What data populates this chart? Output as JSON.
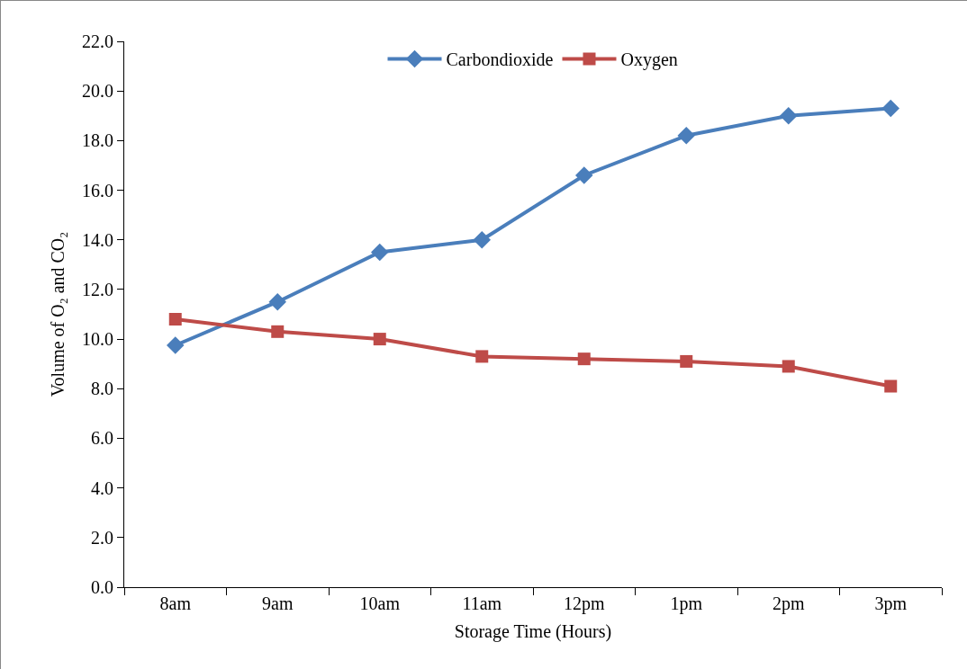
{
  "chart_data": {
    "type": "line",
    "xlabel": "Storage Time (Hours)",
    "ylabel": "Volume of O₂ and CO₂",
    "categories": [
      "8am",
      "9am",
      "10am",
      "11am",
      "12pm",
      "1pm",
      "2pm",
      "3pm"
    ],
    "series": [
      {
        "name": "Carbondioxide",
        "color": "#4a7ebb",
        "marker": "diamond",
        "values": [
          9.75,
          11.5,
          13.5,
          14.0,
          16.6,
          18.2,
          19.0,
          19.3
        ]
      },
      {
        "name": "Oxygen",
        "color": "#be4b48",
        "marker": "square",
        "values": [
          10.8,
          10.3,
          10.0,
          9.3,
          9.2,
          9.1,
          8.9,
          8.1
        ]
      }
    ],
    "ylim": [
      0,
      22
    ],
    "yticks": [
      {
        "value": 0,
        "label": "0.0"
      },
      {
        "value": 2,
        "label": "2.0"
      },
      {
        "value": 4,
        "label": "4.0"
      },
      {
        "value": 6,
        "label": "6.0"
      },
      {
        "value": 8,
        "label": "8.0"
      },
      {
        "value": 10,
        "label": "10.0"
      },
      {
        "value": 12,
        "label": "12.0"
      },
      {
        "value": 14,
        "label": "14.0"
      },
      {
        "value": 16,
        "label": "16.0"
      },
      {
        "value": 18,
        "label": "18.0"
      },
      {
        "value": 20,
        "label": "20.0"
      },
      {
        "value": 22,
        "label": "22.0"
      }
    ],
    "grid": false,
    "legend": "top",
    "line_style": "solid"
  }
}
